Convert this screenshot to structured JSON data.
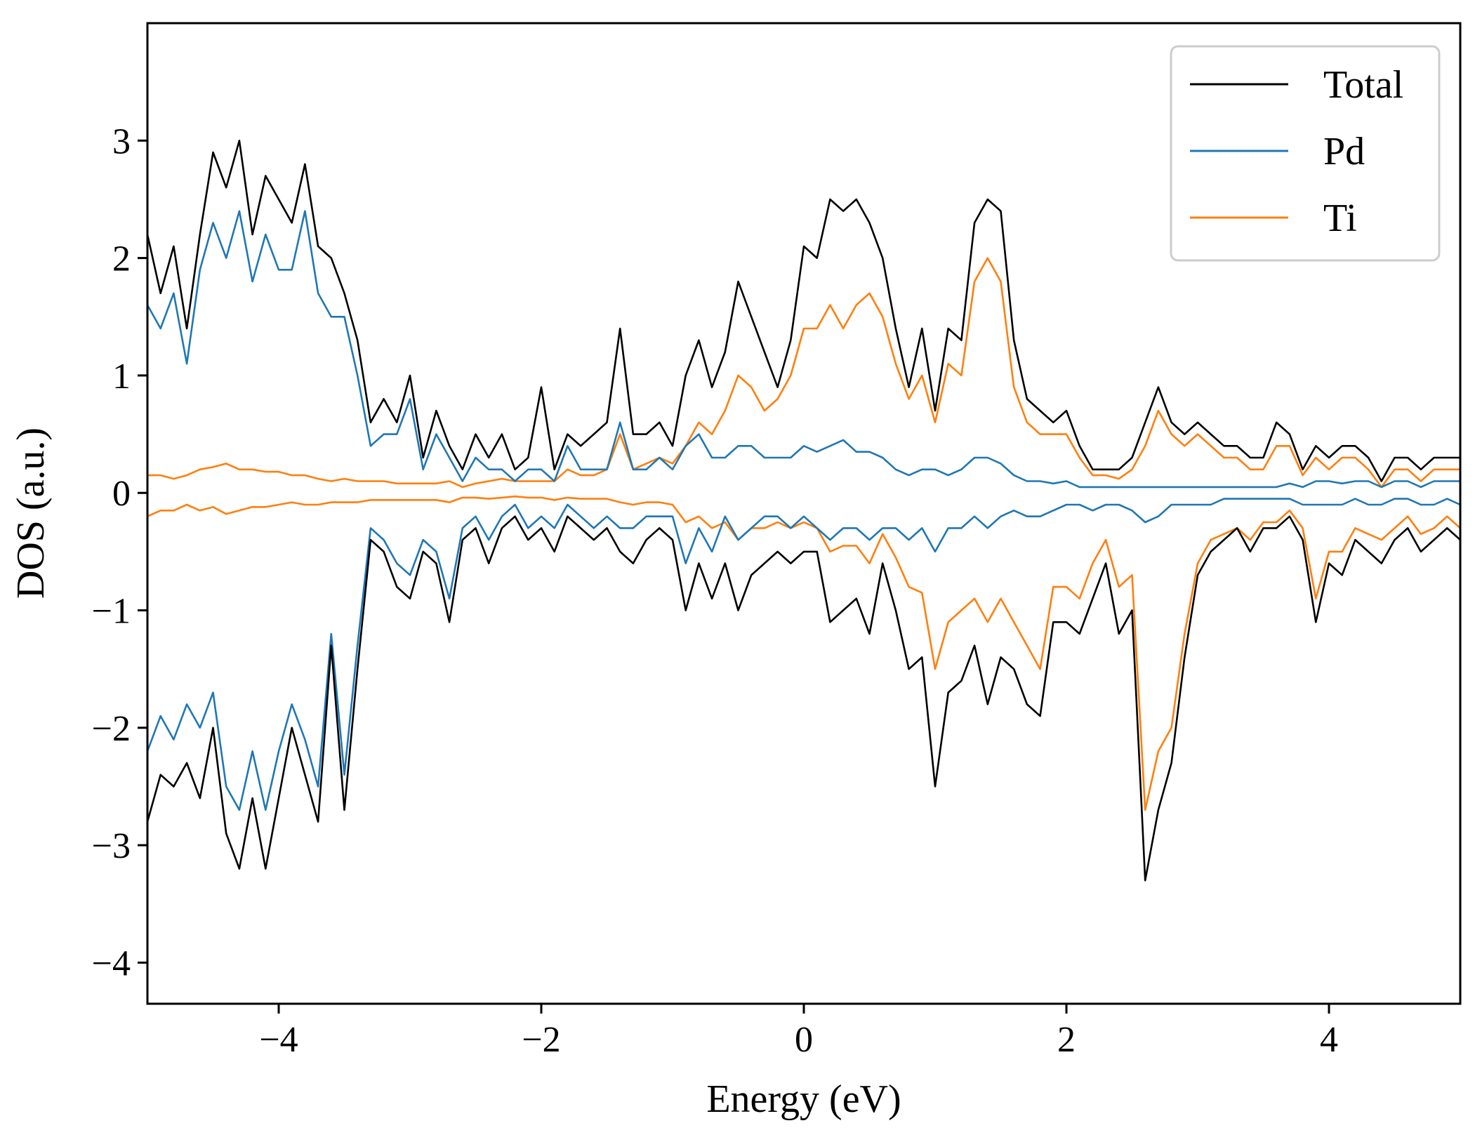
{
  "chart_data": {
    "type": "line",
    "title": "",
    "xlabel": "Energy (eV)",
    "ylabel": "DOS (a.u.)",
    "xlim": [
      -5,
      5
    ],
    "ylim": [
      -4.35,
      4.0
    ],
    "xticks": [
      -4,
      -2,
      0,
      2,
      4
    ],
    "yticks": [
      -4,
      -3,
      -2,
      -1,
      0,
      1,
      2,
      3
    ],
    "xtick_labels": [
      "−4",
      "−2",
      "0",
      "2",
      "4"
    ],
    "ytick_labels": [
      "−4",
      "−3",
      "−2",
      "−1",
      "0",
      "1",
      "2",
      "3"
    ],
    "grid": false,
    "legend": {
      "placement": "top-right",
      "entries": [
        "Total",
        "Pd",
        "Ti"
      ]
    },
    "x": [
      -5.0,
      -4.9,
      -4.8,
      -4.7,
      -4.6,
      -4.5,
      -4.4,
      -4.3,
      -4.2,
      -4.1,
      -4.0,
      -3.9,
      -3.8,
      -3.7,
      -3.6,
      -3.5,
      -3.4,
      -3.3,
      -3.2,
      -3.1,
      -3.0,
      -2.9,
      -2.8,
      -2.7,
      -2.6,
      -2.5,
      -2.4,
      -2.3,
      -2.2,
      -2.1,
      -2.0,
      -1.9,
      -1.8,
      -1.7,
      -1.6,
      -1.5,
      -1.4,
      -1.3,
      -1.2,
      -1.1,
      -1.0,
      -0.9,
      -0.8,
      -0.7,
      -0.6,
      -0.5,
      -0.4,
      -0.3,
      -0.2,
      -0.1,
      0.0,
      0.1,
      0.2,
      0.3,
      0.4,
      0.5,
      0.6,
      0.7,
      0.8,
      0.9,
      1.0,
      1.1,
      1.2,
      1.3,
      1.4,
      1.5,
      1.6,
      1.7,
      1.8,
      1.9,
      2.0,
      2.1,
      2.2,
      2.3,
      2.4,
      2.5,
      2.6,
      2.7,
      2.8,
      2.9,
      3.0,
      3.1,
      3.2,
      3.3,
      3.4,
      3.5,
      3.6,
      3.7,
      3.8,
      3.9,
      4.0,
      4.1,
      4.2,
      4.3,
      4.4,
      4.5,
      4.6,
      4.7,
      4.8,
      4.9,
      5.0
    ],
    "series": [
      {
        "name": "Total",
        "color": "#000000",
        "up": [
          2.2,
          1.7,
          2.1,
          1.4,
          2.2,
          2.9,
          2.6,
          3.0,
          2.2,
          2.7,
          2.5,
          2.3,
          2.8,
          2.1,
          2.0,
          1.7,
          1.3,
          0.6,
          0.8,
          0.6,
          1.0,
          0.3,
          0.7,
          0.4,
          0.2,
          0.5,
          0.3,
          0.5,
          0.2,
          0.3,
          0.9,
          0.2,
          0.5,
          0.4,
          0.5,
          0.6,
          1.4,
          0.5,
          0.5,
          0.6,
          0.4,
          1.0,
          1.3,
          0.9,
          1.2,
          1.8,
          1.5,
          1.2,
          0.9,
          1.3,
          2.1,
          2.0,
          2.5,
          2.4,
          2.5,
          2.3,
          2.0,
          1.4,
          0.9,
          1.4,
          0.7,
          1.4,
          1.3,
          2.3,
          2.5,
          2.4,
          1.3,
          0.8,
          0.7,
          0.6,
          0.7,
          0.4,
          0.2,
          0.2,
          0.2,
          0.3,
          0.6,
          0.9,
          0.6,
          0.5,
          0.6,
          0.5,
          0.4,
          0.4,
          0.3,
          0.3,
          0.6,
          0.5,
          0.2,
          0.4,
          0.3,
          0.4,
          0.4,
          0.3,
          0.1,
          0.3,
          0.3,
          0.2,
          0.3,
          0.3,
          0.3
        ],
        "down": [
          -2.8,
          -2.4,
          -2.5,
          -2.3,
          -2.6,
          -2.0,
          -2.9,
          -3.2,
          -2.6,
          -3.2,
          -2.6,
          -2.0,
          -2.4,
          -2.8,
          -1.3,
          -2.7,
          -1.5,
          -0.4,
          -0.5,
          -0.8,
          -0.9,
          -0.5,
          -0.6,
          -1.1,
          -0.4,
          -0.3,
          -0.6,
          -0.3,
          -0.2,
          -0.4,
          -0.3,
          -0.5,
          -0.2,
          -0.3,
          -0.4,
          -0.3,
          -0.5,
          -0.6,
          -0.4,
          -0.3,
          -0.4,
          -1.0,
          -0.6,
          -0.9,
          -0.6,
          -1.0,
          -0.7,
          -0.6,
          -0.5,
          -0.6,
          -0.5,
          -0.5,
          -1.1,
          -1.0,
          -0.9,
          -1.2,
          -0.6,
          -1.0,
          -1.5,
          -1.4,
          -2.5,
          -1.7,
          -1.6,
          -1.3,
          -1.8,
          -1.4,
          -1.5,
          -1.8,
          -1.9,
          -1.1,
          -1.1,
          -1.2,
          -0.9,
          -0.6,
          -1.2,
          -1.0,
          -3.3,
          -2.7,
          -2.3,
          -1.4,
          -0.7,
          -0.5,
          -0.4,
          -0.3,
          -0.5,
          -0.3,
          -0.3,
          -0.2,
          -0.4,
          -1.1,
          -0.6,
          -0.7,
          -0.4,
          -0.5,
          -0.6,
          -0.4,
          -0.3,
          -0.5,
          -0.4,
          -0.3,
          -0.4
        ]
      },
      {
        "name": "Pd",
        "color": "#1f77b4",
        "up": [
          1.6,
          1.4,
          1.7,
          1.1,
          1.9,
          2.3,
          2.0,
          2.4,
          1.8,
          2.2,
          1.9,
          1.9,
          2.4,
          1.7,
          1.5,
          1.5,
          1.0,
          0.4,
          0.5,
          0.5,
          0.8,
          0.2,
          0.5,
          0.3,
          0.1,
          0.3,
          0.2,
          0.2,
          0.1,
          0.2,
          0.2,
          0.1,
          0.4,
          0.2,
          0.2,
          0.2,
          0.6,
          0.2,
          0.2,
          0.3,
          0.2,
          0.4,
          0.5,
          0.3,
          0.3,
          0.4,
          0.4,
          0.3,
          0.3,
          0.3,
          0.4,
          0.35,
          0.4,
          0.45,
          0.35,
          0.35,
          0.3,
          0.2,
          0.15,
          0.2,
          0.2,
          0.15,
          0.2,
          0.3,
          0.3,
          0.25,
          0.15,
          0.1,
          0.1,
          0.08,
          0.1,
          0.05,
          0.05,
          0.05,
          0.05,
          0.05,
          0.05,
          0.05,
          0.05,
          0.05,
          0.05,
          0.05,
          0.05,
          0.05,
          0.05,
          0.05,
          0.05,
          0.08,
          0.05,
          0.1,
          0.1,
          0.08,
          0.1,
          0.1,
          0.05,
          0.1,
          0.1,
          0.05,
          0.1,
          0.1,
          0.1
        ],
        "down": [
          -2.2,
          -1.9,
          -2.1,
          -1.8,
          -2.0,
          -1.7,
          -2.5,
          -2.7,
          -2.2,
          -2.7,
          -2.2,
          -1.8,
          -2.1,
          -2.5,
          -1.2,
          -2.4,
          -1.3,
          -0.3,
          -0.4,
          -0.6,
          -0.7,
          -0.4,
          -0.5,
          -0.9,
          -0.3,
          -0.2,
          -0.4,
          -0.2,
          -0.1,
          -0.3,
          -0.2,
          -0.3,
          -0.1,
          -0.2,
          -0.3,
          -0.2,
          -0.3,
          -0.3,
          -0.2,
          -0.2,
          -0.2,
          -0.6,
          -0.3,
          -0.5,
          -0.2,
          -0.4,
          -0.3,
          -0.2,
          -0.2,
          -0.3,
          -0.2,
          -0.3,
          -0.4,
          -0.3,
          -0.3,
          -0.4,
          -0.3,
          -0.3,
          -0.4,
          -0.3,
          -0.5,
          -0.3,
          -0.3,
          -0.2,
          -0.3,
          -0.2,
          -0.15,
          -0.2,
          -0.2,
          -0.15,
          -0.1,
          -0.1,
          -0.15,
          -0.1,
          -0.1,
          -0.15,
          -0.25,
          -0.2,
          -0.1,
          -0.1,
          -0.1,
          -0.1,
          -0.05,
          -0.05,
          -0.05,
          -0.05,
          -0.05,
          -0.05,
          -0.1,
          -0.1,
          -0.1,
          -0.1,
          -0.05,
          -0.1,
          -0.1,
          -0.05,
          -0.05,
          -0.1,
          -0.1,
          -0.05,
          -0.1
        ]
      },
      {
        "name": "Ti",
        "color": "#ff7f0e",
        "up": [
          0.15,
          0.15,
          0.12,
          0.15,
          0.2,
          0.22,
          0.25,
          0.2,
          0.2,
          0.18,
          0.18,
          0.15,
          0.15,
          0.12,
          0.1,
          0.12,
          0.1,
          0.1,
          0.1,
          0.08,
          0.08,
          0.08,
          0.08,
          0.1,
          0.05,
          0.08,
          0.1,
          0.12,
          0.1,
          0.1,
          0.1,
          0.1,
          0.2,
          0.15,
          0.15,
          0.2,
          0.5,
          0.2,
          0.25,
          0.3,
          0.25,
          0.4,
          0.6,
          0.5,
          0.7,
          1.0,
          0.9,
          0.7,
          0.8,
          1.0,
          1.4,
          1.4,
          1.6,
          1.4,
          1.6,
          1.7,
          1.5,
          1.1,
          0.8,
          1.0,
          0.6,
          1.1,
          1.0,
          1.8,
          2.0,
          1.8,
          0.9,
          0.6,
          0.5,
          0.5,
          0.5,
          0.3,
          0.15,
          0.15,
          0.12,
          0.2,
          0.4,
          0.7,
          0.5,
          0.4,
          0.5,
          0.4,
          0.3,
          0.3,
          0.2,
          0.2,
          0.4,
          0.4,
          0.15,
          0.3,
          0.2,
          0.3,
          0.3,
          0.2,
          0.05,
          0.2,
          0.2,
          0.1,
          0.2,
          0.2,
          0.2
        ],
        "down": [
          -0.2,
          -0.15,
          -0.15,
          -0.1,
          -0.15,
          -0.12,
          -0.18,
          -0.15,
          -0.12,
          -0.12,
          -0.1,
          -0.08,
          -0.1,
          -0.1,
          -0.08,
          -0.08,
          -0.08,
          -0.06,
          -0.06,
          -0.06,
          -0.06,
          -0.06,
          -0.06,
          -0.08,
          -0.04,
          -0.04,
          -0.05,
          -0.04,
          -0.03,
          -0.04,
          -0.04,
          -0.06,
          -0.04,
          -0.05,
          -0.05,
          -0.05,
          -0.08,
          -0.1,
          -0.08,
          -0.08,
          -0.1,
          -0.25,
          -0.2,
          -0.3,
          -0.25,
          -0.4,
          -0.3,
          -0.3,
          -0.25,
          -0.3,
          -0.25,
          -0.3,
          -0.5,
          -0.45,
          -0.45,
          -0.6,
          -0.35,
          -0.55,
          -0.8,
          -0.85,
          -1.5,
          -1.1,
          -1.0,
          -0.9,
          -1.1,
          -0.9,
          -1.1,
          -1.3,
          -1.5,
          -0.8,
          -0.8,
          -0.9,
          -0.6,
          -0.4,
          -0.8,
          -0.7,
          -2.7,
          -2.2,
          -2.0,
          -1.2,
          -0.6,
          -0.4,
          -0.35,
          -0.3,
          -0.4,
          -0.25,
          -0.25,
          -0.15,
          -0.3,
          -0.9,
          -0.5,
          -0.5,
          -0.3,
          -0.35,
          -0.4,
          -0.3,
          -0.2,
          -0.35,
          -0.3,
          -0.2,
          -0.3
        ]
      }
    ]
  }
}
